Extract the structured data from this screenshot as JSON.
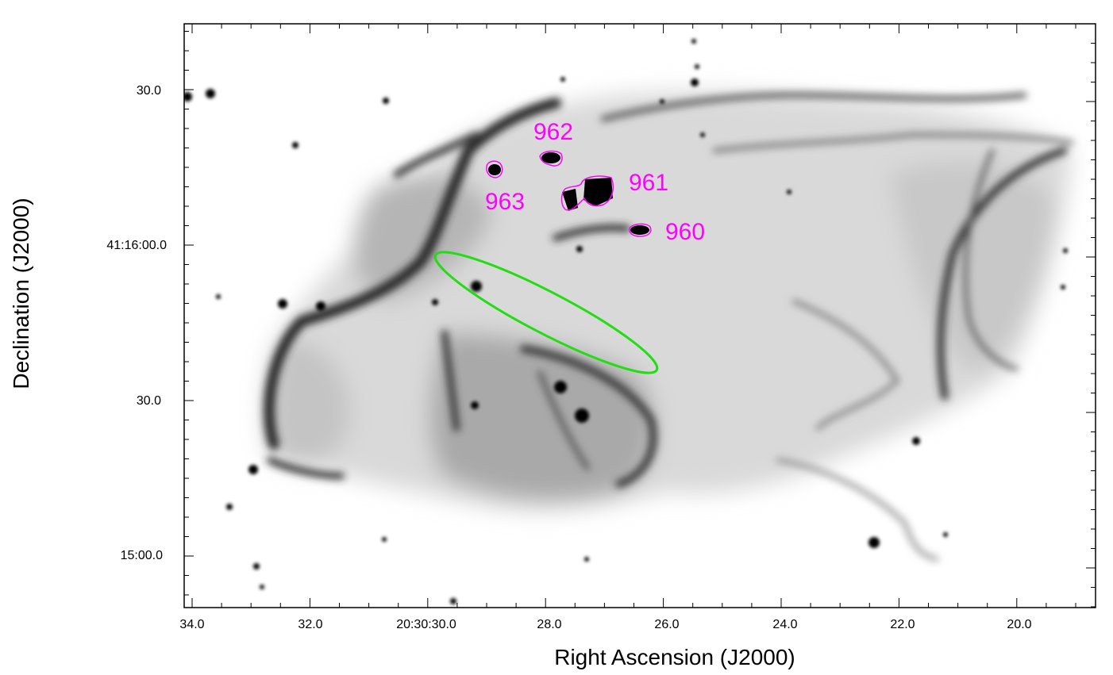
{
  "axes": {
    "xlabel": "Right Ascension (J2000)",
    "ylabel": "Declination (J2000)",
    "x_ticks": [
      "34.0",
      "32.0",
      "20:30:30.0",
      "28.0",
      "26.0",
      "24.0",
      "22.0",
      "20.0"
    ],
    "y_ticks": [
      "30.0",
      "41:16:00.0",
      "30.0",
      "15:00.0"
    ]
  },
  "sources": [
    {
      "id": "962",
      "label": "962"
    },
    {
      "id": "961",
      "label": "961"
    },
    {
      "id": "963",
      "label": "963"
    },
    {
      "id": "960",
      "label": "960"
    }
  ],
  "colors": {
    "contour": "#ff00ff",
    "ellipse": "#22dd11",
    "nebula": "#1a1a1a",
    "background": "#ffffff"
  },
  "image": {
    "description_type": "greyscale inverted astronomical image of a nebula",
    "overlays": [
      "magenta contours around sources",
      "green ellipse region"
    ]
  }
}
